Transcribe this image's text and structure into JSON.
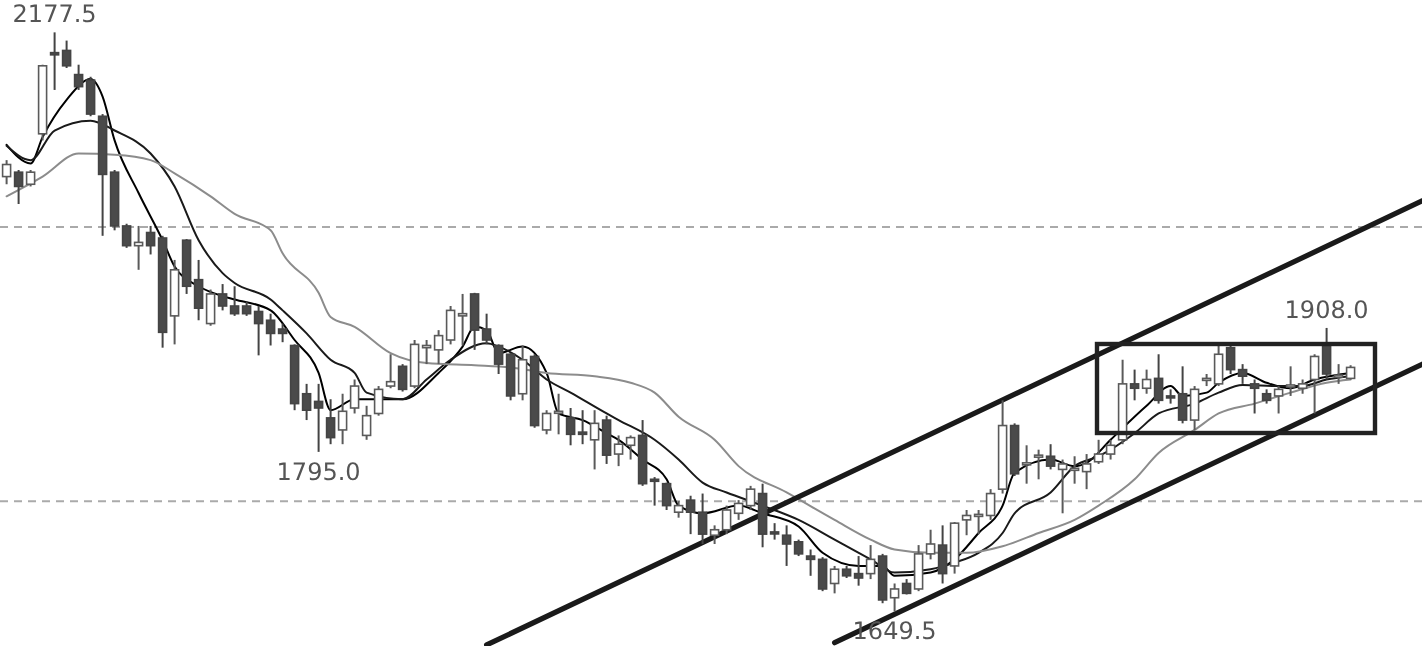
{
  "chart_data": {
    "type": "candlestick",
    "categories": [
      null,
      null,
      null,
      null,
      null,
      null,
      null,
      null,
      null,
      null,
      null,
      null,
      null,
      null,
      null,
      null,
      null,
      null,
      null,
      null,
      null,
      null,
      null,
      null,
      null,
      null,
      null,
      null,
      null,
      null,
      null,
      null,
      null,
      null,
      null,
      null,
      null,
      null,
      null,
      null,
      null,
      null,
      null,
      null,
      null,
      null,
      null,
      null,
      null,
      null,
      null,
      null,
      null,
      null,
      null,
      null,
      null,
      null,
      null,
      null,
      null,
      null,
      null,
      null,
      null,
      null,
      null,
      null,
      null,
      null,
      null,
      null,
      null,
      null,
      null,
      null,
      null,
      null,
      null,
      null,
      null,
      null,
      null,
      null,
      null,
      null,
      null,
      null,
      null,
      null,
      null,
      null,
      null,
      null,
      null,
      null,
      null,
      null,
      null,
      null,
      null,
      null,
      null,
      null,
      null,
      null,
      null,
      null,
      null,
      null,
      null,
      null,
      null,
      null,
      null,
      null,
      null,
      null,
      null
    ],
    "ohlc": [
      [
        2046,
        2061,
        2039,
        2057
      ],
      [
        2050,
        2052,
        2021,
        2037
      ],
      [
        2039,
        2052,
        2037,
        2050
      ],
      [
        2085,
        2148,
        2079,
        2147
      ],
      [
        2159,
        2177.5,
        2125,
        2157
      ],
      [
        2161,
        2170,
        2145,
        2147
      ],
      [
        2139,
        2148,
        2125,
        2128
      ],
      [
        2134,
        2137,
        2101,
        2103
      ],
      [
        2101,
        2103,
        1992,
        2048
      ],
      [
        2050,
        2052,
        1997,
        2001
      ],
      [
        2001,
        2003,
        1981,
        1983
      ],
      [
        1983,
        2001,
        1961,
        1986
      ],
      [
        1995,
        2001,
        1975,
        1983
      ],
      [
        1990,
        1992,
        1890,
        1904
      ],
      [
        1919,
        1970,
        1893,
        1961
      ],
      [
        1988,
        1989,
        1939,
        1946
      ],
      [
        1952,
        1970,
        1915,
        1926
      ],
      [
        1912,
        1943,
        1910,
        1939
      ],
      [
        1939,
        1948,
        1924,
        1928
      ],
      [
        1928,
        1946,
        1919,
        1921
      ],
      [
        1928,
        1932,
        1919,
        1921
      ],
      [
        1923,
        1928,
        1883,
        1912
      ],
      [
        1915,
        1921,
        1892,
        1903
      ],
      [
        1907,
        1912,
        1895,
        1903
      ],
      [
        1892,
        1893,
        1833,
        1839
      ],
      [
        1848,
        1857,
        1824,
        1833
      ],
      [
        1841,
        1857,
        1795,
        1835
      ],
      [
        1826,
        1843,
        1802,
        1808
      ],
      [
        1815,
        1848,
        1802,
        1832
      ],
      [
        1835,
        1861,
        1830,
        1855
      ],
      [
        1810,
        1837,
        1806,
        1828
      ],
      [
        1830,
        1855,
        1828,
        1852
      ],
      [
        1855,
        1884,
        1853,
        1859
      ],
      [
        1873,
        1875,
        1850,
        1852
      ],
      [
        1855,
        1897,
        1853,
        1893
      ],
      [
        1890,
        1897,
        1875,
        1892
      ],
      [
        1888,
        1906,
        1875,
        1901
      ],
      [
        1897,
        1928,
        1893,
        1924
      ],
      [
        1919,
        1939,
        1892,
        1921
      ],
      [
        1939,
        1940,
        1888,
        1906
      ],
      [
        1907,
        1921,
        1893,
        1897
      ],
      [
        1892,
        1893,
        1866,
        1875
      ],
      [
        1884,
        1885,
        1842,
        1846
      ],
      [
        1848,
        1892,
        1842,
        1879
      ],
      [
        1882,
        1884,
        1817,
        1819
      ],
      [
        1815,
        1833,
        1811,
        1830
      ],
      [
        1831,
        1848,
        1811,
        1832
      ],
      [
        1826,
        1835,
        1801,
        1811
      ],
      [
        1813,
        1833,
        1802,
        1811
      ],
      [
        1806,
        1833,
        1779,
        1821
      ],
      [
        1824,
        1828,
        1784,
        1792
      ],
      [
        1793,
        1810,
        1782,
        1802
      ],
      [
        1801,
        1810,
        1788,
        1808
      ],
      [
        1810,
        1824,
        1764,
        1766
      ],
      [
        1770,
        1772,
        1746,
        1769
      ],
      [
        1766,
        1767,
        1742,
        1746
      ],
      [
        1740,
        1750,
        1735,
        1746
      ],
      [
        1751,
        1755,
        1720,
        1740
      ],
      [
        1740,
        1757,
        1711,
        1720
      ],
      [
        1719,
        1728,
        1711,
        1724
      ],
      [
        1724,
        1746,
        1720,
        1742
      ],
      [
        1739,
        1751,
        1733,
        1748
      ],
      [
        1746,
        1764,
        1742,
        1761
      ],
      [
        1757,
        1766,
        1708,
        1720
      ],
      [
        1722,
        1730,
        1715,
        1721
      ],
      [
        1719,
        1728,
        1691,
        1711
      ],
      [
        1713,
        1715,
        1700,
        1702
      ],
      [
        1700,
        1706,
        1682,
        1697
      ],
      [
        1697,
        1699,
        1668,
        1670
      ],
      [
        1675,
        1691,
        1666,
        1688
      ],
      [
        1688,
        1691,
        1680,
        1682
      ],
      [
        1684,
        1700,
        1673,
        1680
      ],
      [
        1684,
        1710,
        1679,
        1697
      ],
      [
        1700,
        1702,
        1657,
        1660
      ],
      [
        1662,
        1675,
        1649.5,
        1670
      ],
      [
        1675,
        1679,
        1665,
        1666
      ],
      [
        1670,
        1710,
        1668,
        1702
      ],
      [
        1702,
        1724,
        1697,
        1711
      ],
      [
        1710,
        1728,
        1675,
        1684
      ],
      [
        1691,
        1731,
        1684,
        1730
      ],
      [
        1733,
        1742,
        1719,
        1737
      ],
      [
        1737,
        1742,
        1720,
        1738
      ],
      [
        1737,
        1761,
        1733,
        1757
      ],
      [
        1761,
        1842,
        1757,
        1819
      ],
      [
        1819,
        1821,
        1773,
        1775
      ],
      [
        1784,
        1801,
        1766,
        1785
      ],
      [
        1791,
        1797,
        1770,
        1792
      ],
      [
        1791,
        1802,
        1779,
        1782
      ],
      [
        1779,
        1788,
        1739,
        1784
      ],
      [
        1779,
        1791,
        1766,
        1780
      ],
      [
        1777,
        1793,
        1761,
        1784
      ],
      [
        1786,
        1806,
        1784,
        1793
      ],
      [
        1793,
        1806,
        1788,
        1801
      ],
      [
        1806,
        1879,
        1802,
        1857
      ],
      [
        1857,
        1870,
        1842,
        1853
      ],
      [
        1853,
        1870,
        1848,
        1861
      ],
      [
        1862,
        1884,
        1839,
        1842
      ],
      [
        1846,
        1852,
        1839,
        1845
      ],
      [
        1848,
        1873,
        1821,
        1824
      ],
      [
        1824,
        1855,
        1815,
        1852
      ],
      [
        1861,
        1866,
        1855,
        1862
      ],
      [
        1857,
        1892,
        1855,
        1884
      ],
      [
        1890,
        1892,
        1866,
        1870
      ],
      [
        1870,
        1875,
        1857,
        1864
      ],
      [
        1857,
        1861,
        1830,
        1853
      ],
      [
        1848,
        1852,
        1839,
        1842
      ],
      [
        1846,
        1855,
        1830,
        1852
      ],
      [
        1855,
        1873,
        1846,
        1856
      ],
      [
        1853,
        1861,
        1848,
        1857
      ],
      [
        1861,
        1884,
        1830,
        1882
      ],
      [
        1892,
        1908,
        1861,
        1866
      ],
      [
        1864,
        1875,
        1857,
        1865
      ],
      [
        1862,
        1874,
        1861,
        1872
      ],
      null,
      null,
      null,
      null,
      null,
      null
    ],
    "series": [
      {
        "type": "line",
        "color": "#000000",
        "values": [
          2075,
          null,
          2058,
          2082,
          null,
          2116,
          null,
          2135,
          2119,
          2079,
          null,
          2031,
          null,
          1988,
          1964,
          null,
          1946,
          null,
          1937,
          1934,
          null,
          null,
          1924,
          null,
          1897,
          null,
          1867,
          1833,
          null,
          1843,
          null,
          1843,
          null,
          1843,
          null,
          null,
          1867,
          null,
          1891,
          1909,
          1906,
          1885,
          null,
          1891,
          null,
          1867,
          1830,
          null,
          1824,
          null,
          1812,
          1806,
          null,
          1788,
          null,
          1770,
          1746,
          null,
          1739,
          null,
          null,
          1746,
          null,
          1739,
          null,
          null,
          1727,
          null,
          1703,
          null,
          null,
          1691,
          null,
          1691,
          1682,
          null,
          null,
          1685,
          null,
          1697,
          null,
          1721,
          null,
          1746,
          1776,
          null,
          null,
          1788,
          null,
          1782,
          1785,
          null,
          1806,
          null,
          null,
          1837,
          null,
          1855,
          1846,
          null,
          1849,
          1858,
          null,
          1867,
          null,
          1858,
          null,
          1853,
          null,
          1861,
          null,
          null,
          1867,
          null,
          null,
          null,
          null,
          null,
          null
        ]
      },
      {
        "type": "line",
        "color": "#1a1a1a",
        "values": [
          2074,
          null,
          2061,
          null,
          2088,
          null,
          null,
          2097,
          null,
          2088,
          null,
          null,
          2067,
          null,
          2037,
          null,
          1988,
          null,
          1958,
          1949,
          null,
          null,
          1934,
          1924,
          null,
          1903,
          null,
          1879,
          null,
          1867,
          1849,
          null,
          null,
          1843,
          null,
          1861,
          null,
          1879,
          null,
          null,
          1894,
          1891,
          null,
          1879,
          null,
          1861,
          null,
          1849,
          null,
          null,
          1830,
          1824,
          null,
          null,
          1806,
          null,
          1788,
          null,
          1767,
          null,
          1758,
          null,
          null,
          1746,
          null,
          null,
          1733,
          null,
          null,
          1715,
          null,
          null,
          1697,
          null,
          1685,
          null,
          null,
          1688,
          null,
          1694,
          null,
          1703,
          null,
          1721,
          1739,
          null,
          null,
          1758,
          null,
          1782,
          null,
          1791,
          null,
          null,
          1812,
          null,
          1830,
          null,
          null,
          1839,
          null,
          1849,
          null,
          1856,
          null,
          null,
          1855,
          null,
          1855,
          null,
          1861,
          null,
          1864,
          null,
          null,
          null,
          null,
          null,
          null
        ]
      },
      {
        "type": "line",
        "color": "#8c8c8c",
        "values": [
          2028,
          null,
          null,
          2046,
          null,
          null,
          2067,
          null,
          null,
          2066,
          null,
          null,
          2061,
          null,
          2049,
          null,
          null,
          2028,
          null,
          2012,
          null,
          null,
          1997,
          1976,
          null,
          null,
          1940,
          1918,
          null,
          1909,
          null,
          null,
          1885,
          null,
          null,
          1876,
          null,
          null,
          null,
          1874,
          null,
          null,
          1872,
          null,
          null,
          1867,
          null,
          null,
          null,
          1864,
          null,
          null,
          1858,
          null,
          1849,
          null,
          1827,
          null,
          null,
          1806,
          null,
          1782,
          null,
          null,
          null,
          1758,
          null,
          null,
          null,
          1733,
          null,
          null,
          1715,
          null,
          1706,
          null,
          null,
          1703,
          null,
          null,
          1703,
          null,
          null,
          1709,
          null,
          null,
          1721,
          null,
          null,
          1733,
          null,
          1746,
          null,
          null,
          1770,
          null,
          1794,
          null,
          null,
          1815,
          null,
          1830,
          null,
          null,
          1839,
          null,
          null,
          1849,
          null,
          null,
          1858,
          null,
          1861,
          null,
          null,
          null,
          null,
          null,
          null
        ]
      },
      {
        "type": "line",
        "color": "#1a1a1a",
        "values": [
          null,
          null,
          null,
          null,
          null,
          null,
          null,
          null,
          null,
          null,
          null,
          null,
          null,
          null,
          null,
          null,
          null,
          null,
          null,
          null,
          null,
          null,
          null,
          null,
          null,
          null,
          null,
          null,
          null,
          null,
          null,
          null,
          null,
          null,
          null,
          null,
          null,
          null,
          null,
          null,
          1619,
          null,
          null,
          null,
          null,
          null,
          null,
          null,
          null,
          null,
          null,
          null,
          null,
          null,
          null,
          null,
          null,
          null,
          null,
          null,
          null,
          null,
          null,
          null,
          null,
          null,
          null,
          null,
          null,
          null,
          null,
          null,
          null,
          null,
          null,
          null,
          null,
          null,
          null,
          null,
          null,
          null,
          null,
          null,
          null,
          null,
          null,
          null,
          null,
          null,
          null,
          null,
          null,
          null,
          null,
          null,
          null,
          null,
          null,
          null,
          null,
          null,
          null,
          null,
          null,
          null,
          null,
          null,
          null,
          null,
          null,
          null,
          null,
          null,
          null,
          null,
          null,
          null,
          2024
        ]
      },
      {
        "type": "line",
        "color": "#1a1a1a",
        "values": [
          null,
          null,
          null,
          null,
          null,
          null,
          null,
          null,
          null,
          null,
          null,
          null,
          null,
          null,
          null,
          null,
          null,
          null,
          null,
          null,
          null,
          null,
          null,
          null,
          null,
          null,
          null,
          null,
          null,
          null,
          null,
          null,
          null,
          null,
          null,
          null,
          null,
          null,
          null,
          null,
          null,
          null,
          null,
          null,
          null,
          null,
          null,
          null,
          null,
          null,
          null,
          null,
          null,
          null,
          null,
          null,
          null,
          null,
          null,
          null,
          null,
          null,
          null,
          null,
          null,
          null,
          null,
          null,
          null,
          1621,
          null,
          null,
          null,
          null,
          null,
          null,
          null,
          null,
          null,
          null,
          null,
          null,
          null,
          null,
          null,
          null,
          null,
          null,
          null,
          null,
          null,
          null,
          null,
          null,
          null,
          null,
          null,
          null,
          null,
          null,
          null,
          null,
          null,
          null,
          null,
          null,
          null,
          null,
          null,
          null,
          null,
          null,
          null,
          null,
          null,
          null,
          null,
          null,
          1875
        ]
      }
    ],
    "ylim": [
      1618,
      2207
    ],
    "yticks": [
      {
        "value": 2000,
        "label": null
      },
      {
        "value": 1750,
        "label": null
      }
    ],
    "grid": "y",
    "annotations": [
      {
        "text": "2177.5",
        "y": 2177.5
      },
      {
        "text": "1795.0",
        "y": 1795.0
      },
      {
        "text": "1649.5",
        "y": 1649.5
      },
      {
        "text": "1908.0",
        "y": 1908.0
      }
    ]
  }
}
